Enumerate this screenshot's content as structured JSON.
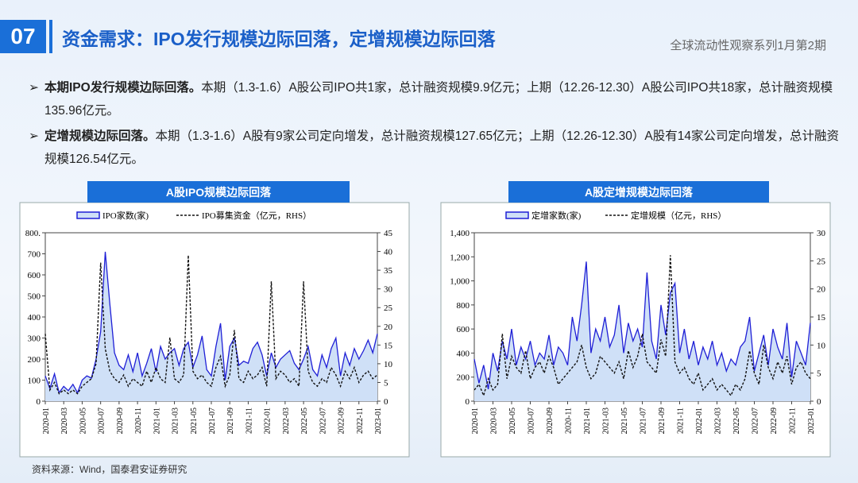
{
  "header": {
    "number": "07",
    "title": "资金需求：IPO发行规模边际回落，定增规模边际回落",
    "subtitle": "全球流动性观察系列1月第2期"
  },
  "bullets": [
    {
      "lead": "本期IPO发行规模边际回落。",
      "text": "本期（1.3-1.6）A股公司IPO共1家，总计融资规模9.9亿元；上期（12.26-12.30）A股公司IPO共18家，总计融资规模135.96亿元。"
    },
    {
      "lead": "定增规模边际回落。",
      "text": "本期（1.3-1.6）A股有9家公司定向增发，总计融资规模127.65亿元；上期（12.26-12.30）A股有14家公司定向增发，总计融资规模126.54亿元。"
    }
  ],
  "source": "资料来源：Wind，国泰君安证券研究",
  "chart_data": [
    {
      "type": "line",
      "title": "A股IPO规模边际回落",
      "legend": "top",
      "categories": [
        "2020-01",
        null,
        null,
        null,
        "2020-03",
        null,
        null,
        null,
        "2020-05",
        null,
        null,
        null,
        "2020-07",
        null,
        null,
        null,
        "2020-09",
        null,
        null,
        null,
        "2020-11",
        null,
        null,
        null,
        "2021-01",
        null,
        null,
        null,
        "2021-03",
        null,
        null,
        null,
        "2021-05",
        null,
        null,
        null,
        "2021-07",
        null,
        null,
        null,
        "2021-09",
        null,
        null,
        null,
        "2021-11",
        null,
        null,
        null,
        "2022-01",
        null,
        null,
        null,
        "2022-03",
        null,
        null,
        null,
        "2022-05",
        null,
        null,
        null,
        "2022-07",
        null,
        null,
        null,
        "2022-09",
        null,
        null,
        null,
        "2022-11",
        null,
        null,
        null,
        "2023-01"
      ],
      "ylim": [
        0,
        800
      ],
      "yticks": [
        0,
        100,
        200,
        300,
        400,
        500,
        600,
        700,
        {
          "value": 800,
          "label": "800."
        }
      ],
      "y2lim": [
        0,
        45
      ],
      "y2ticks": [
        0,
        5,
        10,
        15,
        20,
        25,
        30,
        35,
        40,
        45
      ],
      "series": [
        {
          "name": "IPO家数(家)",
          "color": "#1f1fd6",
          "fill_color": "#cfe0f7",
          "values": [
            120,
            60,
            130,
            40,
            70,
            50,
            80,
            40,
            100,
            120,
            110,
            200,
            330,
            710,
            460,
            230,
            170,
            150,
            220,
            140,
            230,
            120,
            180,
            250,
            140,
            260,
            200,
            230,
            250,
            170,
            250,
            280,
            160,
            220,
            310,
            150,
            120,
            260,
            370,
            100,
            260,
            300,
            170,
            190,
            180,
            250,
            280,
            220,
            120,
            230,
            160,
            200,
            220,
            240,
            180,
            150,
            200,
            260,
            150,
            120,
            220,
            160,
            250,
            300,
            120,
            230,
            170,
            250,
            200,
            240,
            290,
            230,
            320
          ]
        },
        {
          "name": "IPO募集资金（亿元，RHS）",
          "color": "#111111",
          "dash": true,
          "axis": "y2",
          "values": [
            18,
            3,
            5,
            2,
            3,
            2,
            3,
            2,
            4,
            5,
            6,
            10,
            37,
            14,
            8,
            6,
            5,
            7,
            4,
            6,
            5,
            4,
            8,
            5,
            9,
            6,
            5,
            17,
            6,
            5,
            7,
            39,
            8,
            6,
            7,
            5,
            4,
            9,
            12,
            4,
            7,
            19,
            6,
            5,
            8,
            6,
            7,
            9,
            4,
            32,
            6,
            8,
            7,
            5,
            6,
            4,
            32,
            8,
            5,
            4,
            6,
            5,
            9,
            7,
            4,
            8,
            6,
            9,
            5,
            7,
            8,
            6,
            7
          ]
        }
      ]
    },
    {
      "type": "line",
      "title": "A股定增规模边际回落",
      "legend": "top",
      "categories": [
        "2020-01",
        null,
        null,
        null,
        "2020-03",
        null,
        null,
        null,
        "2020-05",
        null,
        null,
        null,
        "2020-07",
        null,
        null,
        null,
        "2020-09",
        null,
        null,
        null,
        "2020-11",
        null,
        null,
        null,
        "2021-01",
        null,
        null,
        null,
        "2021-03",
        null,
        null,
        null,
        "2021-05",
        null,
        null,
        null,
        "2021-07",
        null,
        null,
        null,
        "2021-09",
        null,
        null,
        null,
        "2021-11",
        null,
        null,
        null,
        "2022-01",
        null,
        null,
        null,
        "2022-03",
        null,
        null,
        null,
        "2022-05",
        null,
        null,
        null,
        "2022-07",
        null,
        null,
        null,
        "2022-09",
        null,
        null,
        null,
        "2022-11",
        null,
        null,
        null,
        "2023-01"
      ],
      "ylim": [
        0,
        1400
      ],
      "yticks": [
        0,
        200,
        400,
        600,
        800,
        {
          "value": 1000,
          "label": "1,000"
        },
        {
          "value": 1200,
          "label": "1,200"
        },
        {
          "value": 1400,
          "label": "1,400"
        }
      ],
      "y2lim": [
        0,
        30
      ],
      "y2ticks": [
        0,
        5,
        10,
        15,
        20,
        25,
        30
      ],
      "series": [
        {
          "name": "定增家数(家)",
          "color": "#1f1fd6",
          "fill_color": "#cfe0f7",
          "values": [
            350,
            150,
            300,
            100,
            400,
            250,
            500,
            350,
            600,
            300,
            450,
            350,
            500,
            300,
            400,
            350,
            550,
            300,
            450,
            400,
            300,
            700,
            500,
            800,
            1160,
            400,
            600,
            500,
            700,
            450,
            550,
            800,
            400,
            650,
            500,
            600,
            450,
            1070,
            500,
            350,
            800,
            550,
            900,
            980,
            400,
            600,
            350,
            500,
            300,
            450,
            350,
            500,
            300,
            400,
            250,
            350,
            300,
            450,
            500,
            700,
            250,
            400,
            550,
            300,
            600,
            450,
            350,
            650,
            200,
            500,
            400,
            300,
            650
          ]
        },
        {
          "name": "定增规模（亿元，RHS）",
          "color": "#111111",
          "dash": true,
          "axis": "y2",
          "values": [
            2,
            3,
            1,
            4,
            2,
            3,
            12,
            4,
            8,
            6,
            5,
            9,
            4,
            6,
            7,
            5,
            8,
            6,
            3,
            4,
            5,
            6,
            7,
            10,
            6,
            4,
            5,
            8,
            7,
            6,
            5,
            7,
            4,
            9,
            6,
            8,
            12,
            7,
            6,
            5,
            11,
            8,
            26,
            7,
            5,
            6,
            4,
            3,
            5,
            2,
            3,
            4,
            2,
            3,
            2,
            1,
            3,
            2,
            4,
            9,
            5,
            3,
            10,
            6,
            4,
            7,
            5,
            8,
            3,
            6,
            7,
            5,
            4
          ]
        }
      ]
    }
  ]
}
